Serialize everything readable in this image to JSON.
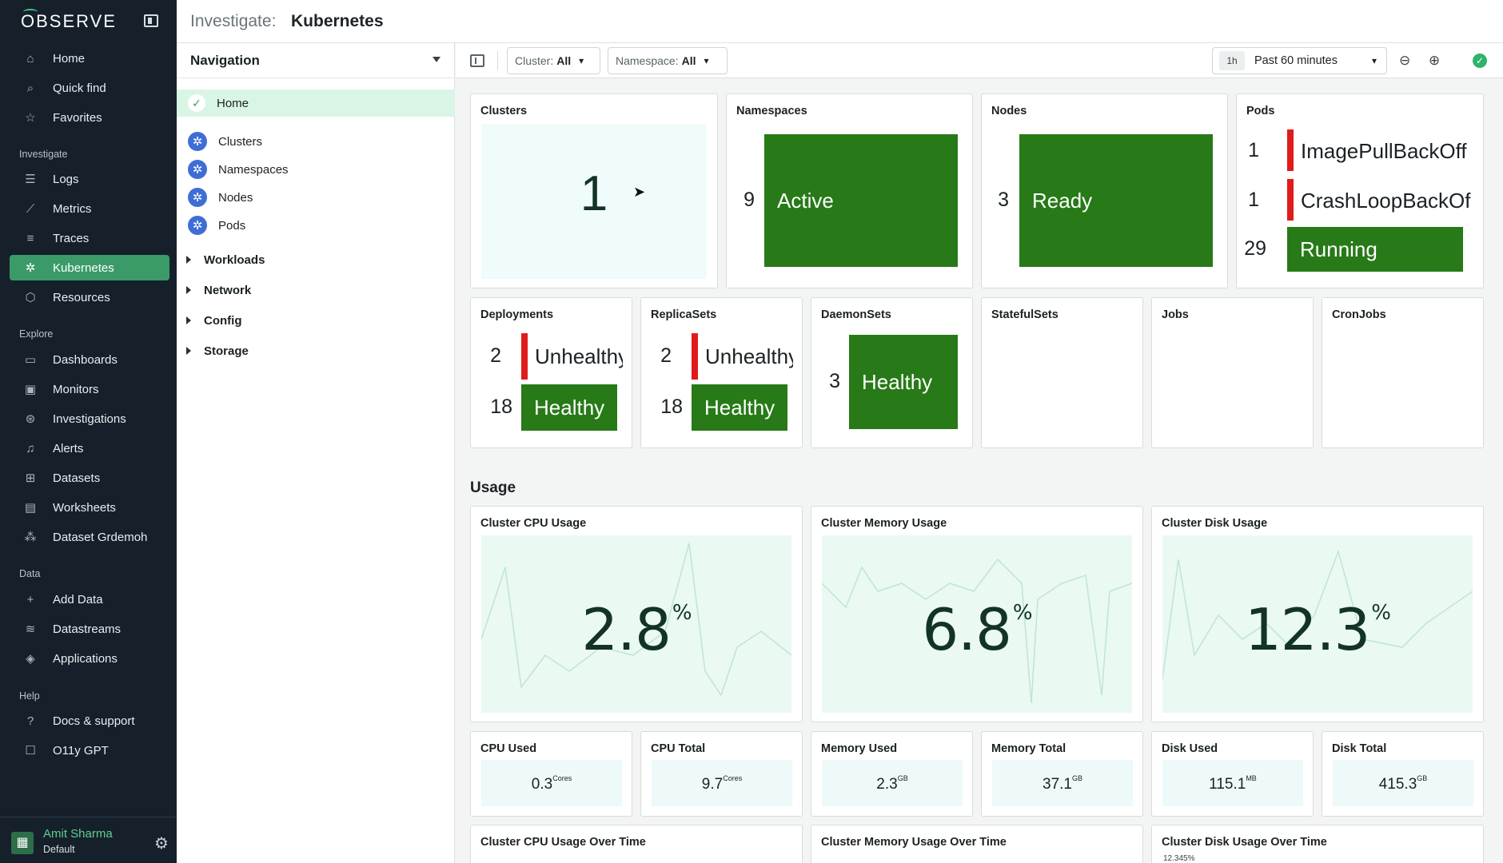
{
  "app": {
    "logo": "OBSERVE"
  },
  "sidebar": {
    "sections": {
      "investigate": "Investigate",
      "explore": "Explore",
      "data": "Data",
      "help": "Help"
    },
    "items": {
      "home": "Home",
      "quick_find": "Quick find",
      "favorites": "Favorites",
      "logs": "Logs",
      "metrics": "Metrics",
      "traces": "Traces",
      "kubernetes": "Kubernetes",
      "resources": "Resources",
      "dashboards": "Dashboards",
      "monitors": "Monitors",
      "investigations": "Investigations",
      "alerts": "Alerts",
      "datasets": "Datasets",
      "worksheets": "Worksheets",
      "dataset_grdemoh": "Dataset Grdemoh",
      "add_data": "Add Data",
      "datastreams": "Datastreams",
      "applications": "Applications",
      "docs_support": "Docs & support",
      "o11y_gpt": "O11y GPT"
    },
    "active": "kubernetes",
    "user": {
      "name": "Amit Sharma",
      "org": "Default"
    }
  },
  "header": {
    "prefix": "Investigate:",
    "title": "Kubernetes"
  },
  "navigation": {
    "title": "Navigation",
    "home": "Home",
    "items": [
      "Clusters",
      "Namespaces",
      "Nodes",
      "Pods"
    ],
    "groups": [
      "Workloads",
      "Network",
      "Config",
      "Storage"
    ]
  },
  "toolbar": {
    "cluster_label": "Cluster:",
    "cluster_value": "All",
    "namespace_label": "Namespace:",
    "namespace_value": "All",
    "time_badge": "1h",
    "time_range": "Past 60 minutes"
  },
  "summary": {
    "clusters": {
      "title": "Clusters",
      "value": "1"
    },
    "namespaces": {
      "title": "Namespaces",
      "count": "9",
      "status": "Active"
    },
    "nodes": {
      "title": "Nodes",
      "count": "3",
      "status": "Ready"
    },
    "pods": {
      "title": "Pods",
      "rows": [
        {
          "count": "1",
          "status": "ImagePullBackOff"
        },
        {
          "count": "1",
          "status": "CrashLoopBackOf"
        },
        {
          "count": "29",
          "status": "Running"
        }
      ]
    },
    "deployments": {
      "title": "Deployments",
      "unhealthy_count": "2",
      "unhealthy": "Unhealthy",
      "healthy_count": "18",
      "healthy": "Healthy"
    },
    "replicasets": {
      "title": "ReplicaSets",
      "unhealthy_count": "2",
      "unhealthy": "Unhealthy",
      "healthy_count": "18",
      "healthy": "Healthy"
    },
    "daemonsets": {
      "title": "DaemonSets",
      "count": "3",
      "status": "Healthy"
    },
    "statefulsets": {
      "title": "StatefulSets"
    },
    "jobs": {
      "title": "Jobs"
    },
    "cronjobs": {
      "title": "CronJobs"
    }
  },
  "usage": {
    "title": "Usage",
    "cpu": {
      "title": "Cluster CPU Usage",
      "value": "2.8",
      "unit": "%"
    },
    "memory": {
      "title": "Cluster Memory Usage",
      "value": "6.8",
      "unit": "%"
    },
    "disk": {
      "title": "Cluster Disk Usage",
      "value": "12.3",
      "unit": "%"
    },
    "stats": [
      {
        "title": "CPU Used",
        "value": "0.3",
        "unit": "Cores"
      },
      {
        "title": "CPU Total",
        "value": "9.7",
        "unit": "Cores"
      },
      {
        "title": "Memory Used",
        "value": "2.3",
        "unit": "GB"
      },
      {
        "title": "Memory Total",
        "value": "37.1",
        "unit": "GB"
      },
      {
        "title": "Disk Used",
        "value": "115.1",
        "unit": "MB"
      },
      {
        "title": "Disk Total",
        "value": "415.3",
        "unit": "GB"
      }
    ],
    "over_time": {
      "cpu": "Cluster CPU Usage Over Time",
      "memory": "Cluster Memory Usage Over Time",
      "disk": "Cluster Disk Usage Over Time",
      "disk_tick": "12.345%"
    }
  },
  "icons": {
    "home": "home-icon",
    "quick_find": "search-icon",
    "favorites": "star-icon",
    "logs": "logs-icon",
    "metrics": "metrics-icon",
    "traces": "traces-icon",
    "kubernetes": "kubernetes-icon",
    "resources": "cube-icon",
    "dashboards": "dashboard-icon",
    "monitors": "monitor-icon",
    "investigations": "investigation-icon",
    "alerts": "bell-icon",
    "datasets": "grid-icon",
    "worksheets": "worksheet-icon",
    "dataset_grdemoh": "graph-icon",
    "add_data": "plus-icon",
    "datastreams": "datastream-icon",
    "applications": "stack-icon",
    "docs_support": "help-icon",
    "o11y_gpt": "chat-icon"
  },
  "colors": {
    "accent": "#3a9b68",
    "healthy": "#277a17",
    "unhealthy": "#e01b1b",
    "sidebar": "#15202b"
  }
}
